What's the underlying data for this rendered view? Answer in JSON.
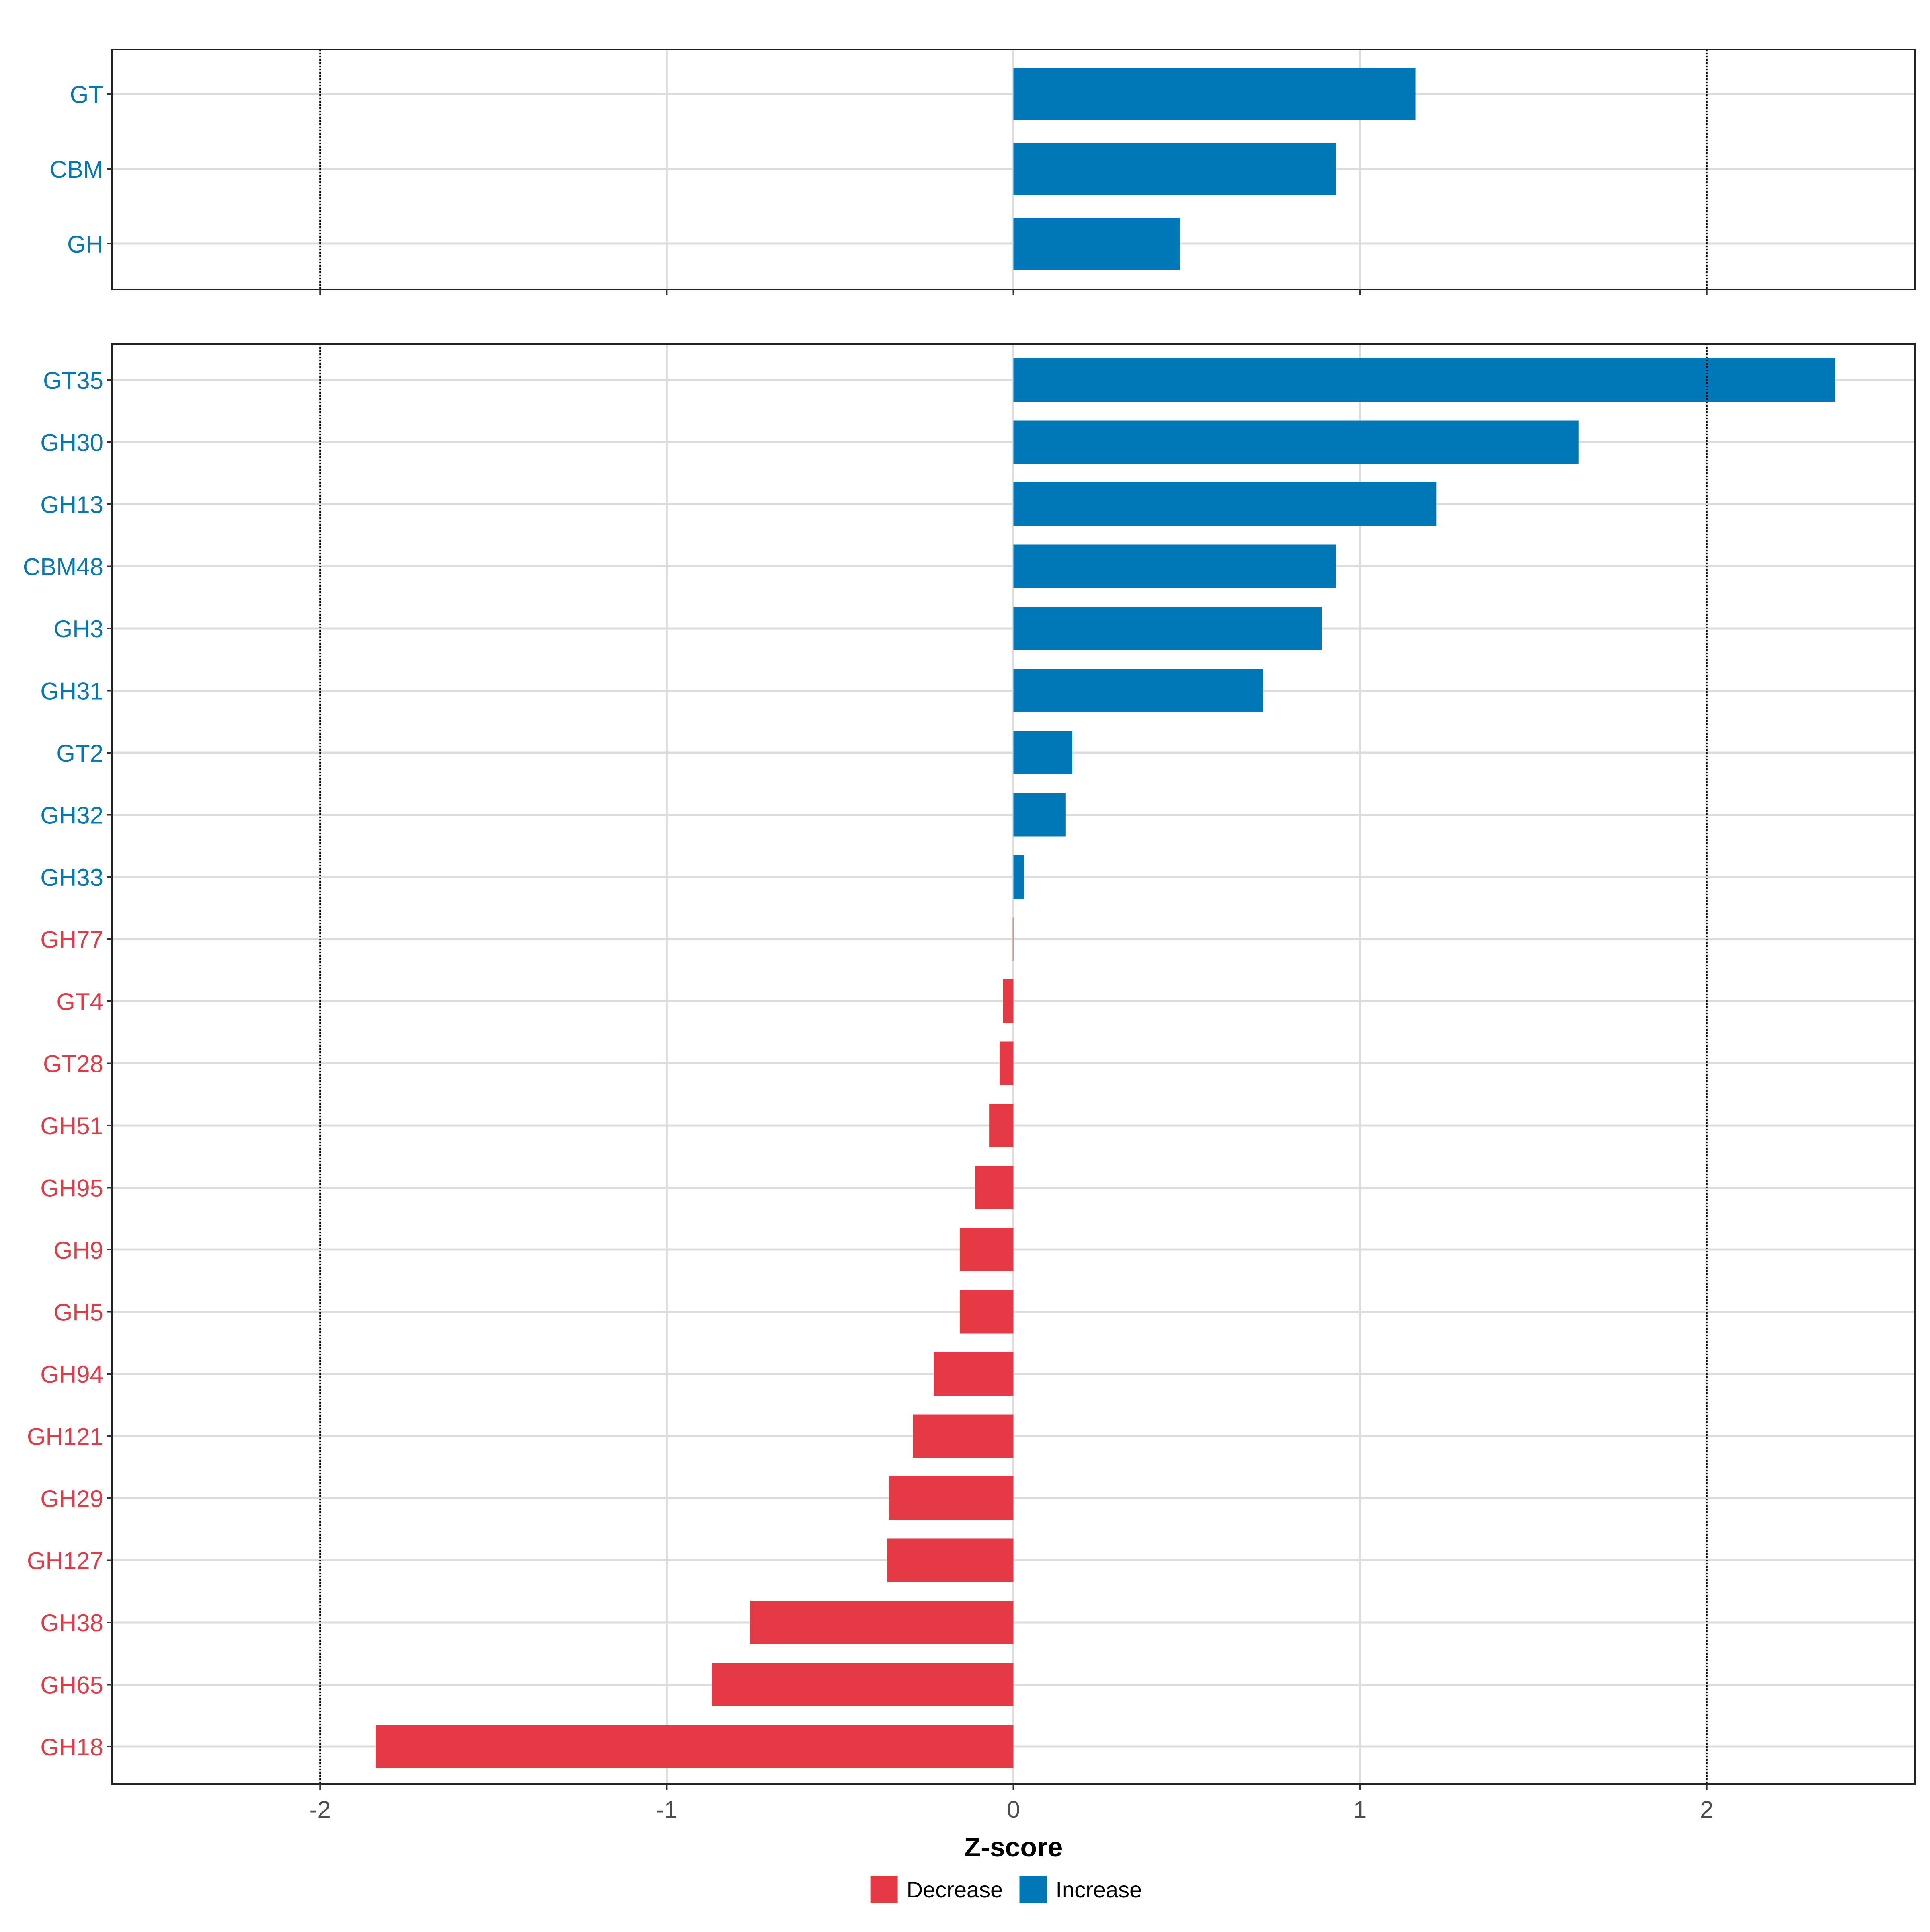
{
  "chart_data": {
    "type": "bar",
    "orientation": "horizontal",
    "xlabel": "Z-score",
    "xlim": [
      -2.6,
      2.6
    ],
    "x_ticks": [
      -2,
      -1,
      0,
      1,
      2
    ],
    "x_tick_labels": [
      "-2",
      "-1",
      "0",
      "1",
      "2"
    ],
    "reference_lines": [
      -2,
      2
    ],
    "grid": true,
    "legend": {
      "position": "bottom",
      "entries": [
        {
          "label": "Decrease",
          "color": "#e63946"
        },
        {
          "label": "Increase",
          "color": "#0077b6"
        }
      ]
    },
    "colors": {
      "Increase": "#0077b6",
      "Decrease": "#e63946"
    },
    "panels": [
      {
        "name": "category-summary",
        "bars": [
          {
            "label": "GT",
            "value": 1.16,
            "direction": "Increase"
          },
          {
            "label": "CBM",
            "value": 0.93,
            "direction": "Increase"
          },
          {
            "label": "GH",
            "value": 0.48,
            "direction": "Increase"
          }
        ]
      },
      {
        "name": "family-detail",
        "bars": [
          {
            "label": "GT35",
            "value": 2.37,
            "direction": "Increase"
          },
          {
            "label": "GH30",
            "value": 1.63,
            "direction": "Increase"
          },
          {
            "label": "GH13",
            "value": 1.22,
            "direction": "Increase"
          },
          {
            "label": "CBM48",
            "value": 0.93,
            "direction": "Increase"
          },
          {
            "label": "GH3",
            "value": 0.89,
            "direction": "Increase"
          },
          {
            "label": "GH31",
            "value": 0.72,
            "direction": "Increase"
          },
          {
            "label": "GT2",
            "value": 0.17,
            "direction": "Increase"
          },
          {
            "label": "GH32",
            "value": 0.15,
            "direction": "Increase"
          },
          {
            "label": "GH33",
            "value": 0.03,
            "direction": "Increase"
          },
          {
            "label": "GH77",
            "value": -0.002,
            "direction": "Decrease"
          },
          {
            "label": "GT4",
            "value": -0.03,
            "direction": "Decrease"
          },
          {
            "label": "GT28",
            "value": -0.04,
            "direction": "Decrease"
          },
          {
            "label": "GH51",
            "value": -0.07,
            "direction": "Decrease"
          },
          {
            "label": "GH95",
            "value": -0.11,
            "direction": "Decrease"
          },
          {
            "label": "GH9",
            "value": -0.155,
            "direction": "Decrease"
          },
          {
            "label": "GH5",
            "value": -0.155,
            "direction": "Decrease"
          },
          {
            "label": "GH94",
            "value": -0.23,
            "direction": "Decrease"
          },
          {
            "label": "GH121",
            "value": -0.29,
            "direction": "Decrease"
          },
          {
            "label": "GH29",
            "value": -0.36,
            "direction": "Decrease"
          },
          {
            "label": "GH127",
            "value": -0.365,
            "direction": "Decrease"
          },
          {
            "label": "GH38",
            "value": -0.76,
            "direction": "Decrease"
          },
          {
            "label": "GH65",
            "value": -0.87,
            "direction": "Decrease"
          },
          {
            "label": "GH18",
            "value": -1.84,
            "direction": "Decrease"
          }
        ]
      }
    ]
  }
}
